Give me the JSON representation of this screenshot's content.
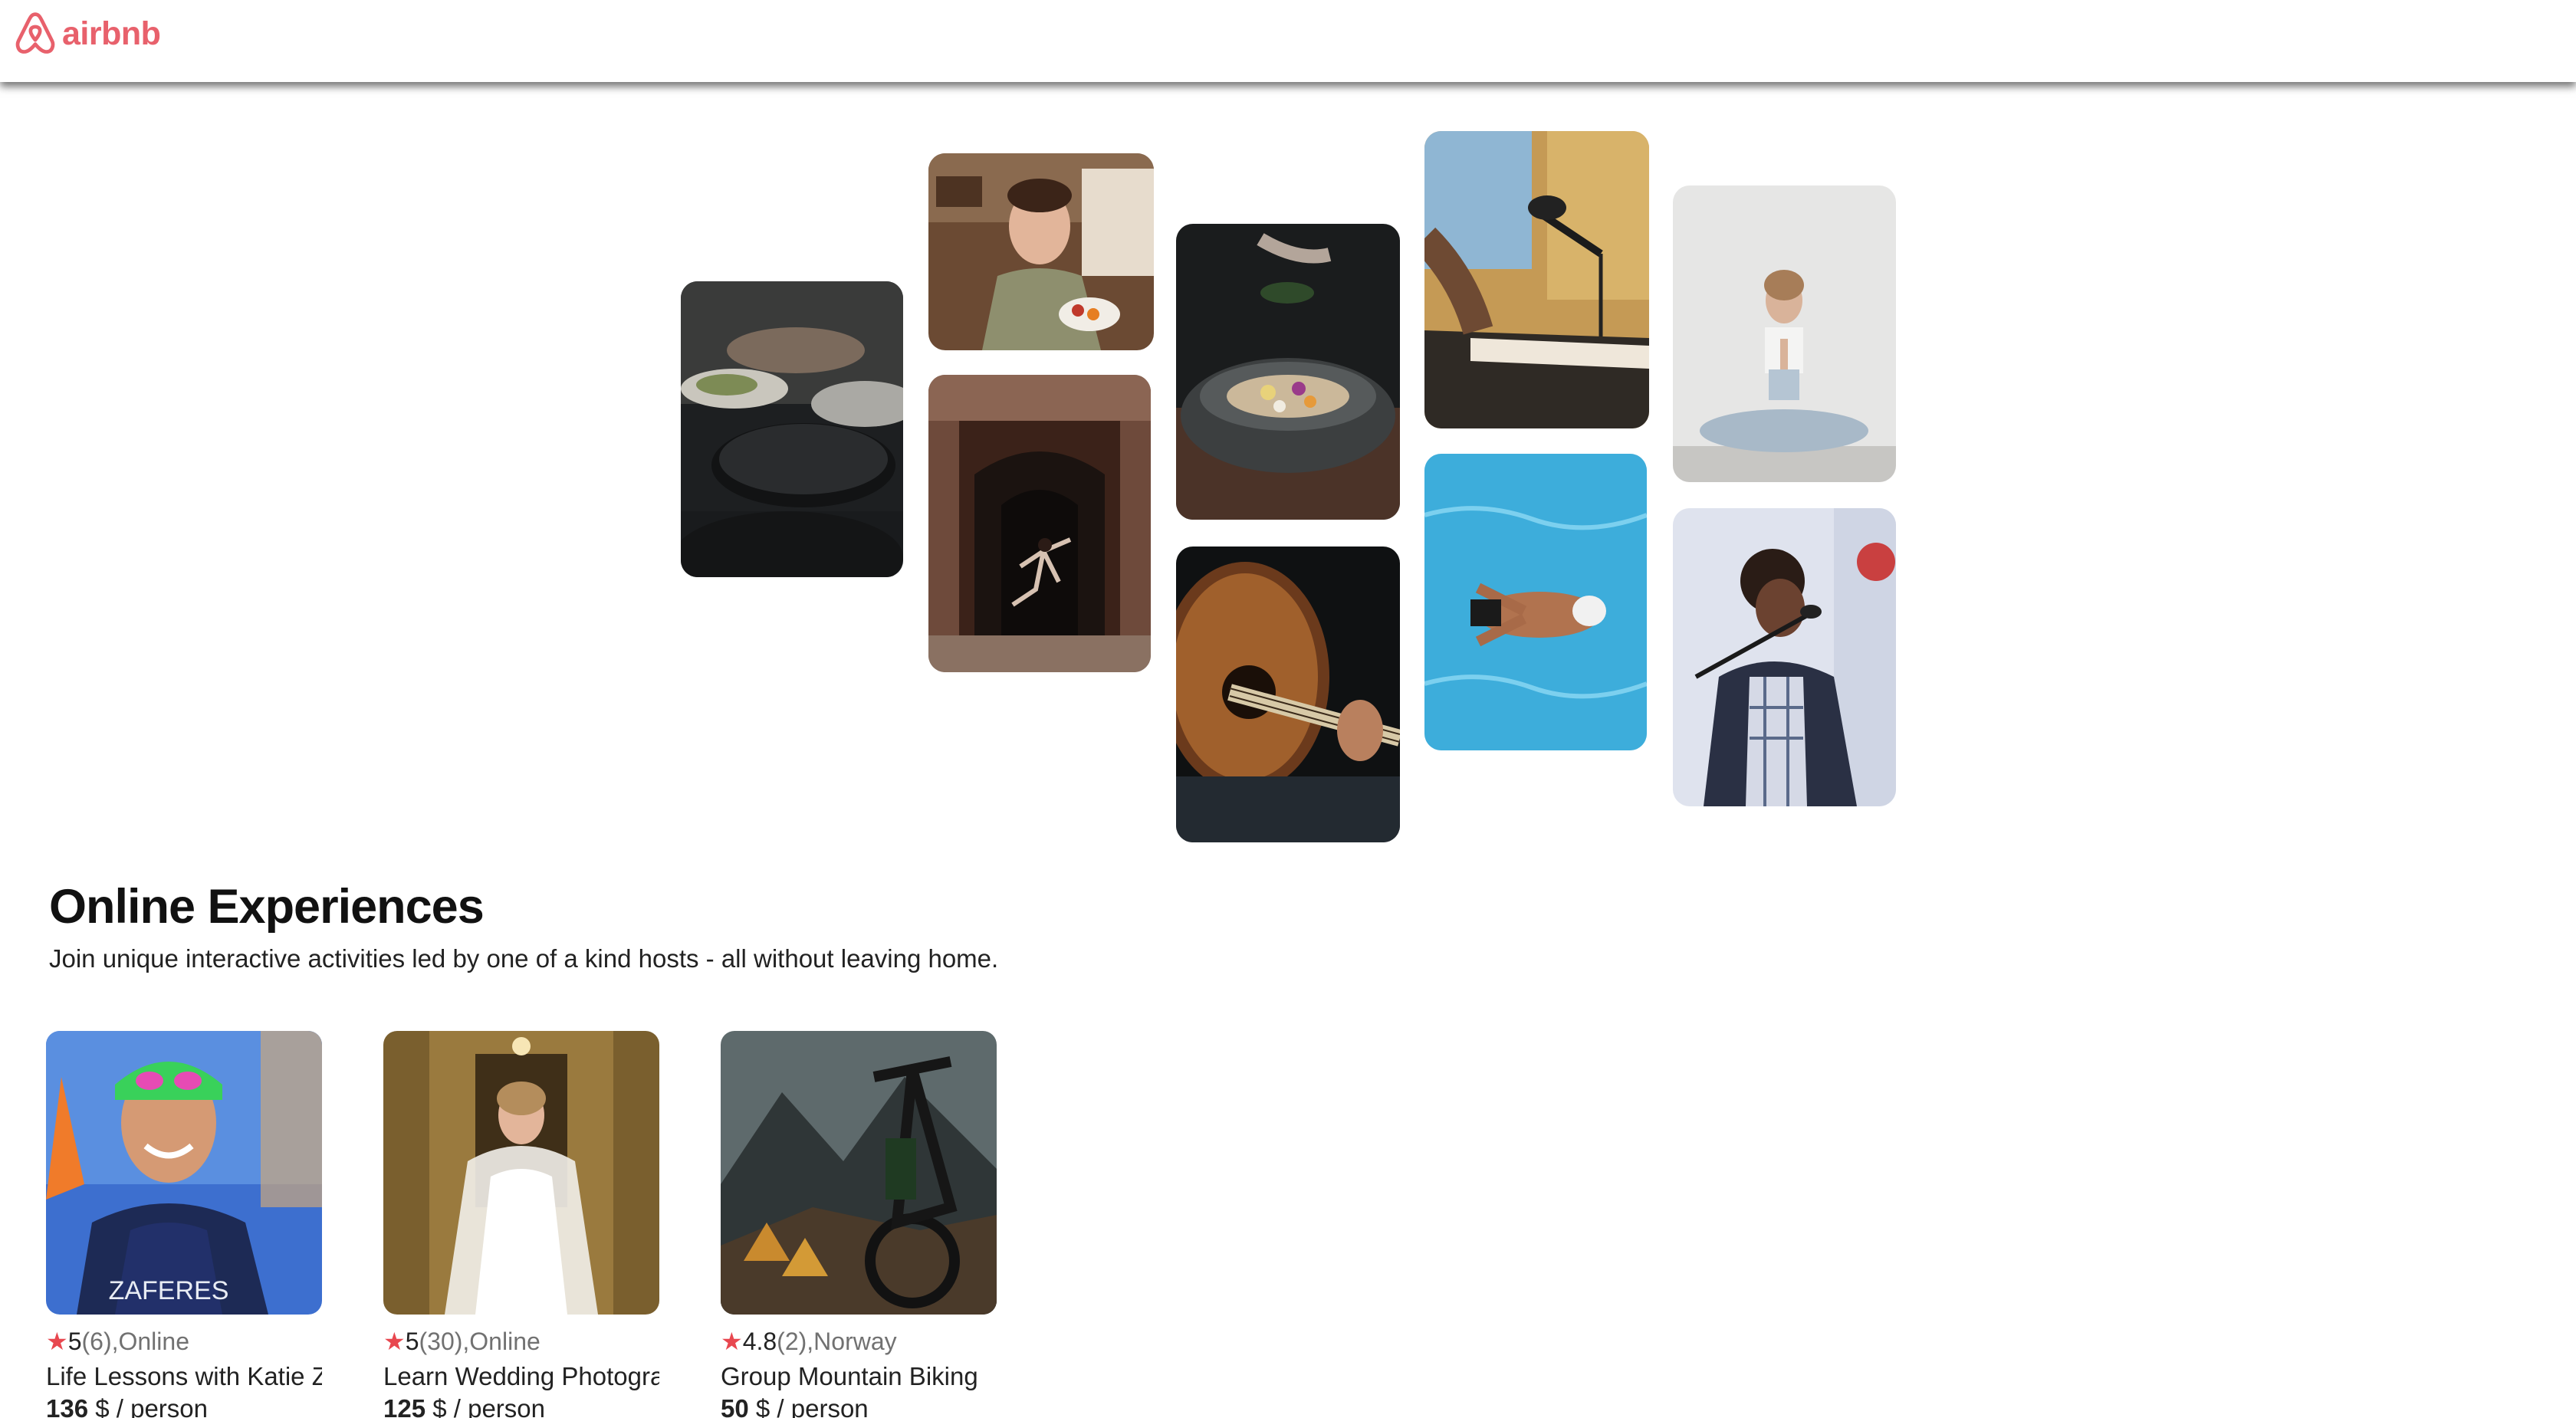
{
  "header": {
    "logo_text": "airbnb",
    "brand_color": "#e8616c"
  },
  "hero": {
    "tiles": [
      {
        "name": "hero-tile-cooking-pans",
        "subject": "cooking"
      },
      {
        "name": "hero-tile-baker-woman",
        "subject": "baking"
      },
      {
        "name": "hero-tile-dancer-doorway",
        "subject": "dance"
      },
      {
        "name": "hero-tile-food-bowl",
        "subject": "food"
      },
      {
        "name": "hero-tile-guitar",
        "subject": "guitar"
      },
      {
        "name": "hero-tile-piano-microphone",
        "subject": "music"
      },
      {
        "name": "hero-tile-swimmer",
        "subject": "swimming"
      },
      {
        "name": "hero-tile-yoga",
        "subject": "yoga"
      },
      {
        "name": "hero-tile-singer",
        "subject": "singing"
      }
    ]
  },
  "section": {
    "title": "Online Experiences",
    "subtitle": "Join unique interactive activities led by one of a kind hosts - all without leaving home."
  },
  "cards": [
    {
      "rating": "5",
      "reviews": "(6)",
      "separator": ",",
      "location": "Online",
      "title": "Life Lessons with Katie Zaferes",
      "price": "136",
      "price_suffix": " $ / person"
    },
    {
      "rating": "5",
      "reviews": "(30)",
      "separator": ",",
      "location": "Online",
      "title": "Learn Wedding Photography",
      "price": "125",
      "price_suffix": " $ / person"
    },
    {
      "rating": "4.8",
      "reviews": "(2)",
      "separator": ",",
      "location": "Norway",
      "title": "Group Mountain Biking",
      "price": "50",
      "price_suffix": " $ / person"
    }
  ],
  "card_image_text": {
    "swimsuit_text": "ZAFERES"
  },
  "icons": {
    "star": "★"
  }
}
